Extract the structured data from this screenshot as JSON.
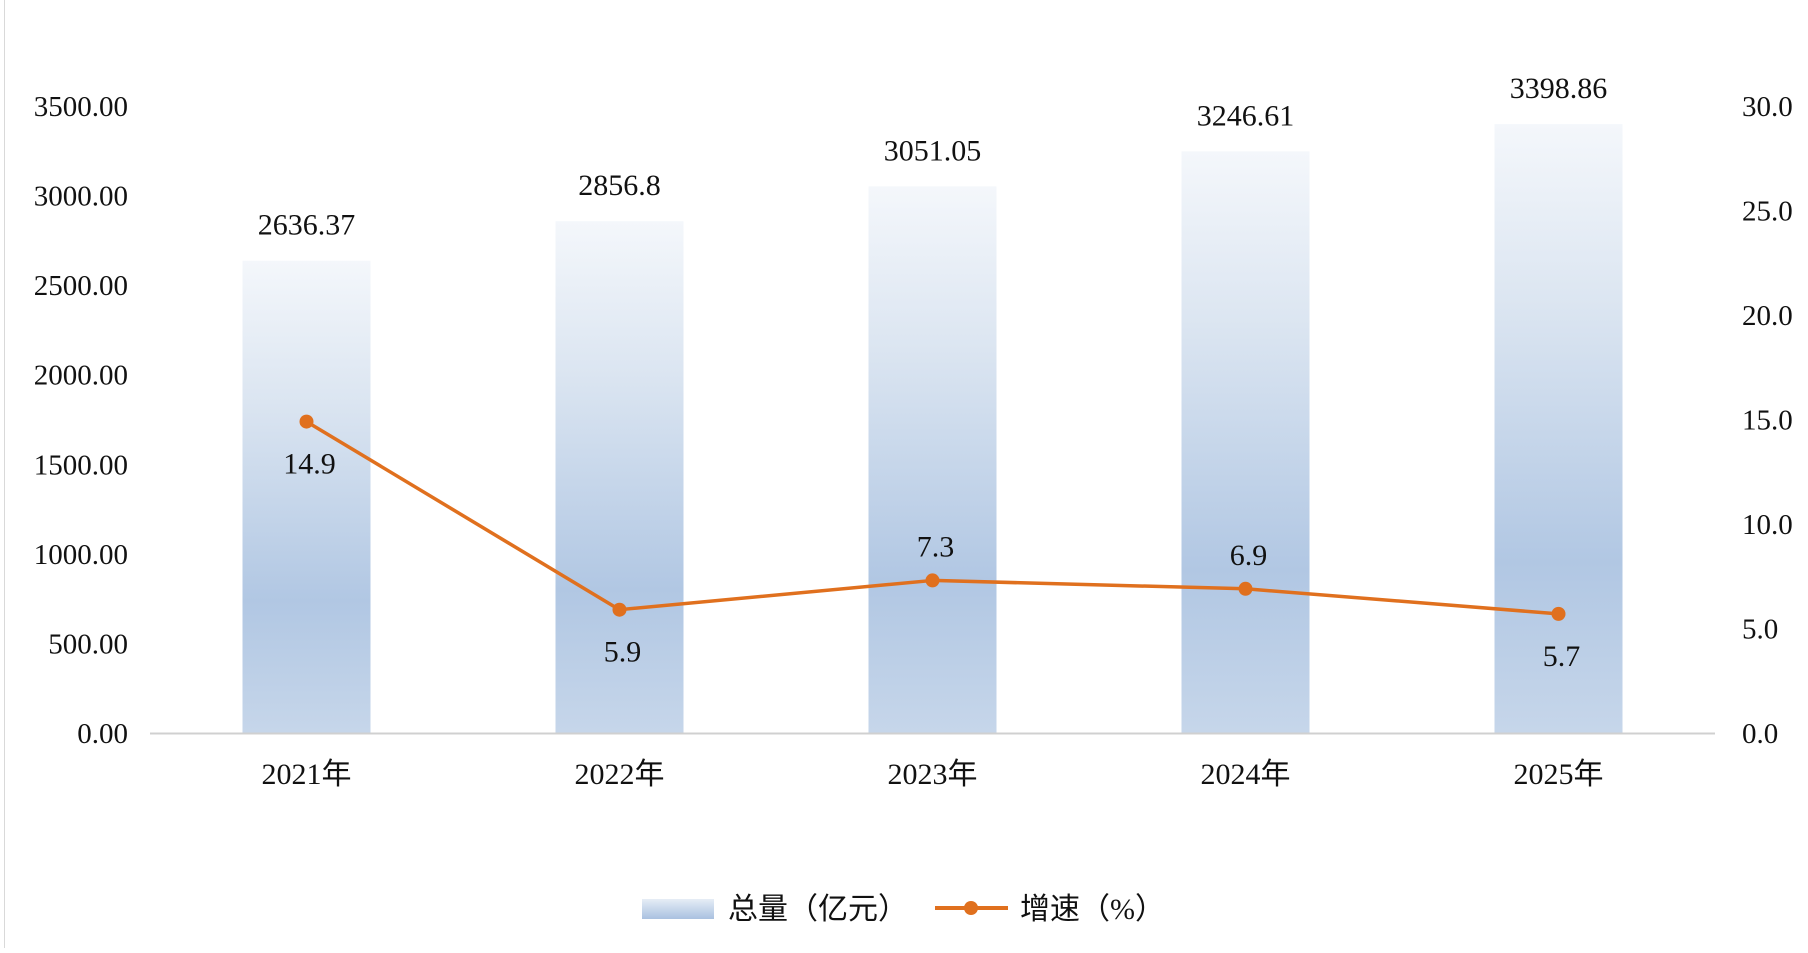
{
  "chart_data": {
    "type": "bar",
    "categories": [
      "2021年",
      "2022年",
      "2023年",
      "2024年",
      "2025年"
    ],
    "series": [
      {
        "name": "总量（亿元）",
        "type": "bar",
        "axis": "left",
        "values": [
          2636.37,
          2856.8,
          3051.05,
          3246.61,
          3398.86
        ],
        "labels": [
          "2636.37",
          "2856.8",
          "3051.05",
          "3246.61",
          "3398.86"
        ],
        "color": "#a9c1e0"
      },
      {
        "name": "增速（%）",
        "type": "line",
        "axis": "right",
        "values": [
          14.9,
          5.9,
          7.3,
          6.9,
          5.7
        ],
        "labels": [
          "14.9",
          "5.9",
          "7.3",
          "6.9",
          "5.7"
        ],
        "color": "#e0701e"
      }
    ],
    "y_left": {
      "ylim": [
        0,
        3500
      ],
      "ticks": [
        0,
        500,
        1000,
        1500,
        2000,
        2500,
        3000,
        3500
      ],
      "tick_labels": [
        "0.00",
        "500.00",
        "1000.00",
        "1500.00",
        "2000.00",
        "2500.00",
        "3000.00",
        "3500.00"
      ]
    },
    "y_right": {
      "ylim": [
        0,
        30
      ],
      "ticks": [
        0,
        5,
        10,
        15,
        20,
        25,
        30
      ],
      "tick_labels": [
        "0.0",
        "5.0",
        "10.0",
        "15.0",
        "20.0",
        "25.0",
        "30.0"
      ]
    },
    "grid": false,
    "legend_position": "bottom-center"
  }
}
